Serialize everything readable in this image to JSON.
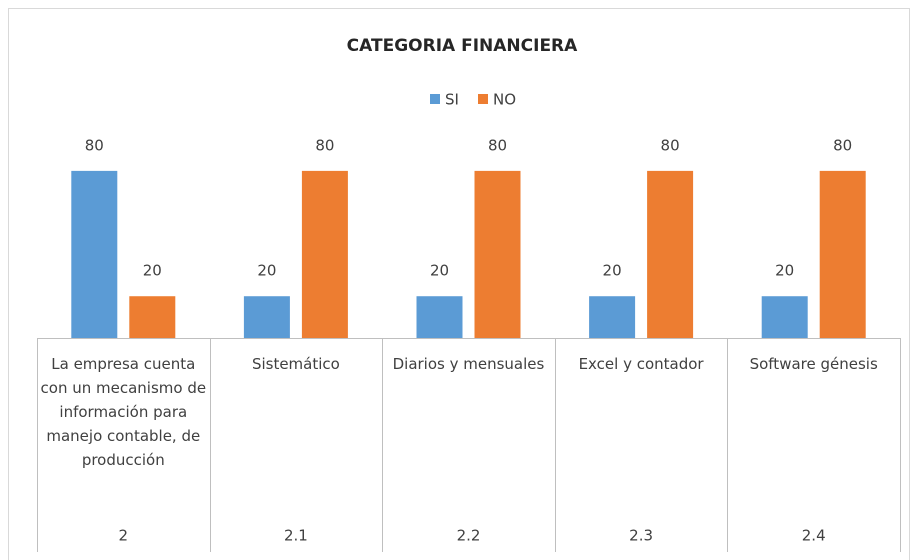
{
  "chart_data": {
    "type": "bar",
    "title": "CATEGORIA FINANCIERA",
    "categories": [
      "La empresa cuenta con un mecanismo de información para manejo contable, de producción",
      "Sistemático",
      "Diarios y mensuales",
      "Excel y contador",
      "Software génesis"
    ],
    "category_groups": [
      "2",
      "2.1",
      "2.2",
      "2.3",
      "2.4"
    ],
    "series": [
      {
        "name": "SI",
        "color": "#5b9bd5",
        "values": [
          80,
          20,
          20,
          20,
          20
        ]
      },
      {
        "name": "NO",
        "color": "#ed7d31",
        "values": [
          20,
          80,
          80,
          80,
          80
        ]
      }
    ],
    "ylim": [
      0,
      90
    ],
    "legend": "top"
  }
}
